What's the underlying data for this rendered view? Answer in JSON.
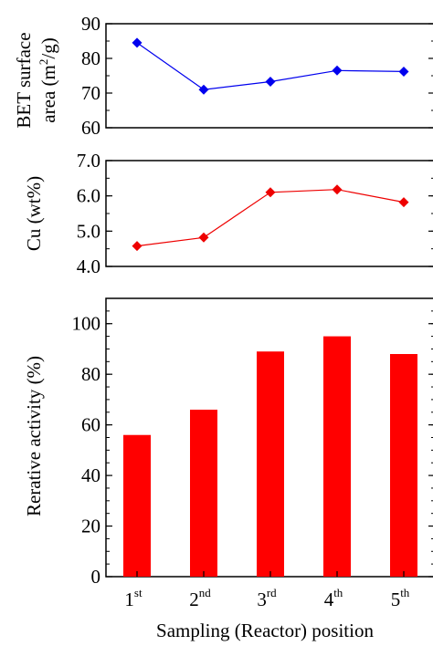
{
  "colors": {
    "bet": "#0000ee",
    "cu": "#ee0000",
    "activity": "#ff0000",
    "axis": "#000000"
  },
  "x_axis": {
    "label": "Sampling (Reactor) position",
    "ticks": [
      {
        "num": "1",
        "sup": "st"
      },
      {
        "num": "2",
        "sup": "nd"
      },
      {
        "num": "3",
        "sup": "rd"
      },
      {
        "num": "4",
        "sup": "th"
      },
      {
        "num": "5",
        "sup": "th"
      }
    ]
  },
  "chart_data": [
    {
      "type": "line",
      "ylabel_line1": "BET surface",
      "ylabel_line2_pre": "area (m",
      "ylabel_line2_sup": "2",
      "ylabel_line2_post": "/g)",
      "categories": [
        "1st",
        "2nd",
        "3rd",
        "4th",
        "5th"
      ],
      "values": [
        84.5,
        71.0,
        73.3,
        76.5,
        76.2
      ],
      "ylim": [
        60,
        90
      ],
      "yticks": [
        "60",
        "70",
        "80",
        "90"
      ],
      "marker": "diamond"
    },
    {
      "type": "line",
      "ylabel": "Cu (wt%)",
      "categories": [
        "1st",
        "2nd",
        "3rd",
        "4th",
        "5th"
      ],
      "values": [
        4.58,
        4.82,
        6.1,
        6.18,
        5.82
      ],
      "ylim": [
        4.0,
        7.0
      ],
      "yticks": [
        "4.0",
        "5.0",
        "6.0",
        "7.0"
      ],
      "marker": "diamond"
    },
    {
      "type": "bar",
      "ylabel": "Rerative activity (%)",
      "categories": [
        "1st",
        "2nd",
        "3rd",
        "4th",
        "5th"
      ],
      "values": [
        56,
        66,
        89,
        95,
        88
      ],
      "ylim": [
        0,
        110
      ],
      "yticks": [
        "0",
        "20",
        "40",
        "60",
        "80",
        "100"
      ]
    }
  ]
}
